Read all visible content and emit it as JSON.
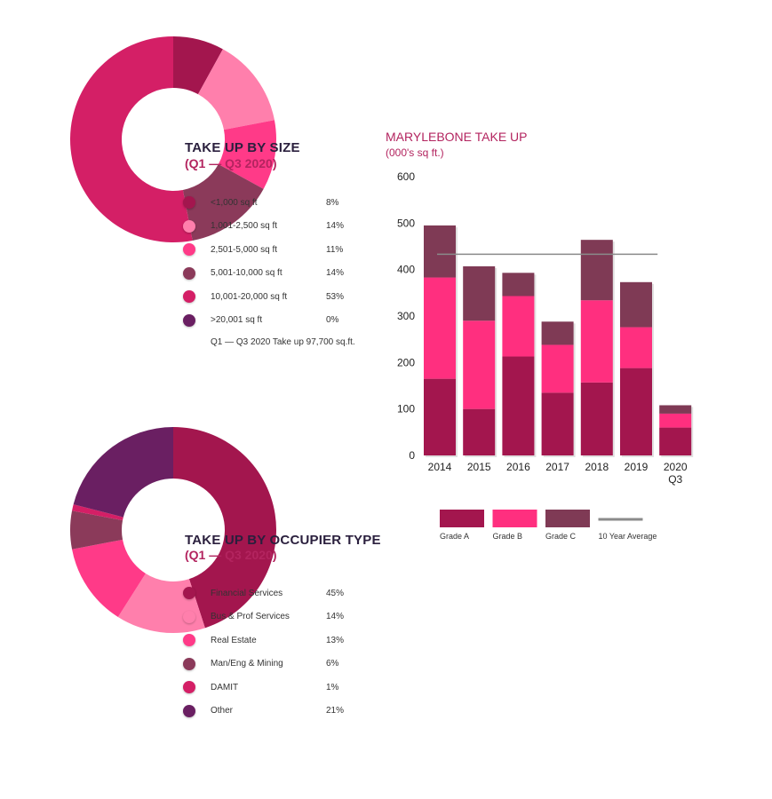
{
  "colors": {
    "accent": "#b3245f",
    "title_dark": "#2a1f3d",
    "average_line": "#8a8a8a"
  },
  "size_panel": {
    "title": "TAKE UP BY SIZE",
    "subtitle": "(Q1 — Q3 2020)",
    "note": "Q1 — Q3 2020 Take up 97,700 sq.ft.",
    "items": [
      {
        "label": "<1,000 sq ft",
        "pct": "8%",
        "color": "#a3164e"
      },
      {
        "label": "1,001-2,500 sq ft",
        "pct": "14%",
        "color": "#ff7fac"
      },
      {
        "label": "2,501-5,000 sq ft",
        "pct": "11%",
        "color": "#ff3a88"
      },
      {
        "label": "5,001-10,000 sq ft",
        "pct": "14%",
        "color": "#8b3a5a"
      },
      {
        "label": "10,001-20,000 sq ft",
        "pct": "53%",
        "color": "#d41f66"
      },
      {
        "label": ">20,001 sq ft",
        "pct": "0%",
        "color": "#6a1f62"
      }
    ]
  },
  "occupier_panel": {
    "title": "TAKE UP BY OCCUPIER TYPE",
    "subtitle": "(Q1 — Q3 2020)",
    "items": [
      {
        "label": "Financial Services",
        "pct": "45%",
        "color": "#a3164e"
      },
      {
        "label": "Bus & Prof Services",
        "pct": "14%",
        "color": "#ff7fac"
      },
      {
        "label": "Real Estate",
        "pct": "13%",
        "color": "#ff3a88"
      },
      {
        "label": "Man/Eng & Mining",
        "pct": "6%",
        "color": "#8b3a5a"
      },
      {
        "label": "DAMIT",
        "pct": "1%",
        "color": "#d41f66"
      },
      {
        "label": "Other",
        "pct": "21%",
        "color": "#6a1f62"
      }
    ]
  },
  "chart_data": [
    {
      "type": "pie",
      "title": "TAKE UP BY SIZE",
      "subtitle": "(Q1 — Q3 2020)",
      "categories": [
        "<1,000 sq ft",
        "1,001-2,500 sq ft",
        "2,501-5,000 sq ft",
        "5,001-10,000 sq ft",
        "10,001-20,000 sq ft",
        ">20,001 sq ft"
      ],
      "values": [
        8,
        14,
        11,
        14,
        53,
        0
      ],
      "colors": [
        "#a3164e",
        "#ff7fac",
        "#ff3a88",
        "#8b3a5a",
        "#d41f66",
        "#6a1f62"
      ]
    },
    {
      "type": "pie",
      "title": "TAKE UP BY OCCUPIER TYPE",
      "subtitle": "(Q1 — Q3 2020)",
      "categories": [
        "Financial Services",
        "Bus & Prof Services",
        "Real Estate",
        "Man/Eng & Mining",
        "DAMIT",
        "Other"
      ],
      "values": [
        45,
        14,
        13,
        6,
        1,
        21
      ],
      "colors": [
        "#a3164e",
        "#ff7fac",
        "#ff3a88",
        "#8b3a5a",
        "#d41f66",
        "#6a1f62"
      ]
    },
    {
      "type": "bar",
      "stacked": true,
      "title": "MARYLEBONE TAKE UP",
      "subtitle": "(000's sq ft.)",
      "categories": [
        "2014",
        "2015",
        "2016",
        "2017",
        "2018",
        "2019",
        "2020"
      ],
      "category_sublabels": [
        "",
        "",
        "",
        "",
        "",
        "",
        "Q3"
      ],
      "series": [
        {
          "name": "Grade A",
          "color": "#a3164e",
          "values": [
            165,
            100,
            213,
            135,
            157,
            188,
            60
          ]
        },
        {
          "name": "Grade B",
          "color": "#ff2f7f",
          "values": [
            218,
            190,
            130,
            103,
            177,
            88,
            30
          ]
        },
        {
          "name": "Grade C",
          "color": "#7f3a55",
          "values": [
            112,
            117,
            50,
            50,
            130,
            97,
            18
          ]
        }
      ],
      "reference_line": {
        "name": "10 Year Average",
        "value": 433,
        "color": "#8a8a8a"
      },
      "ylim": [
        0,
        600
      ],
      "yticks": [
        0,
        100,
        200,
        300,
        400,
        500,
        600
      ],
      "legend_position": "bottom"
    }
  ]
}
